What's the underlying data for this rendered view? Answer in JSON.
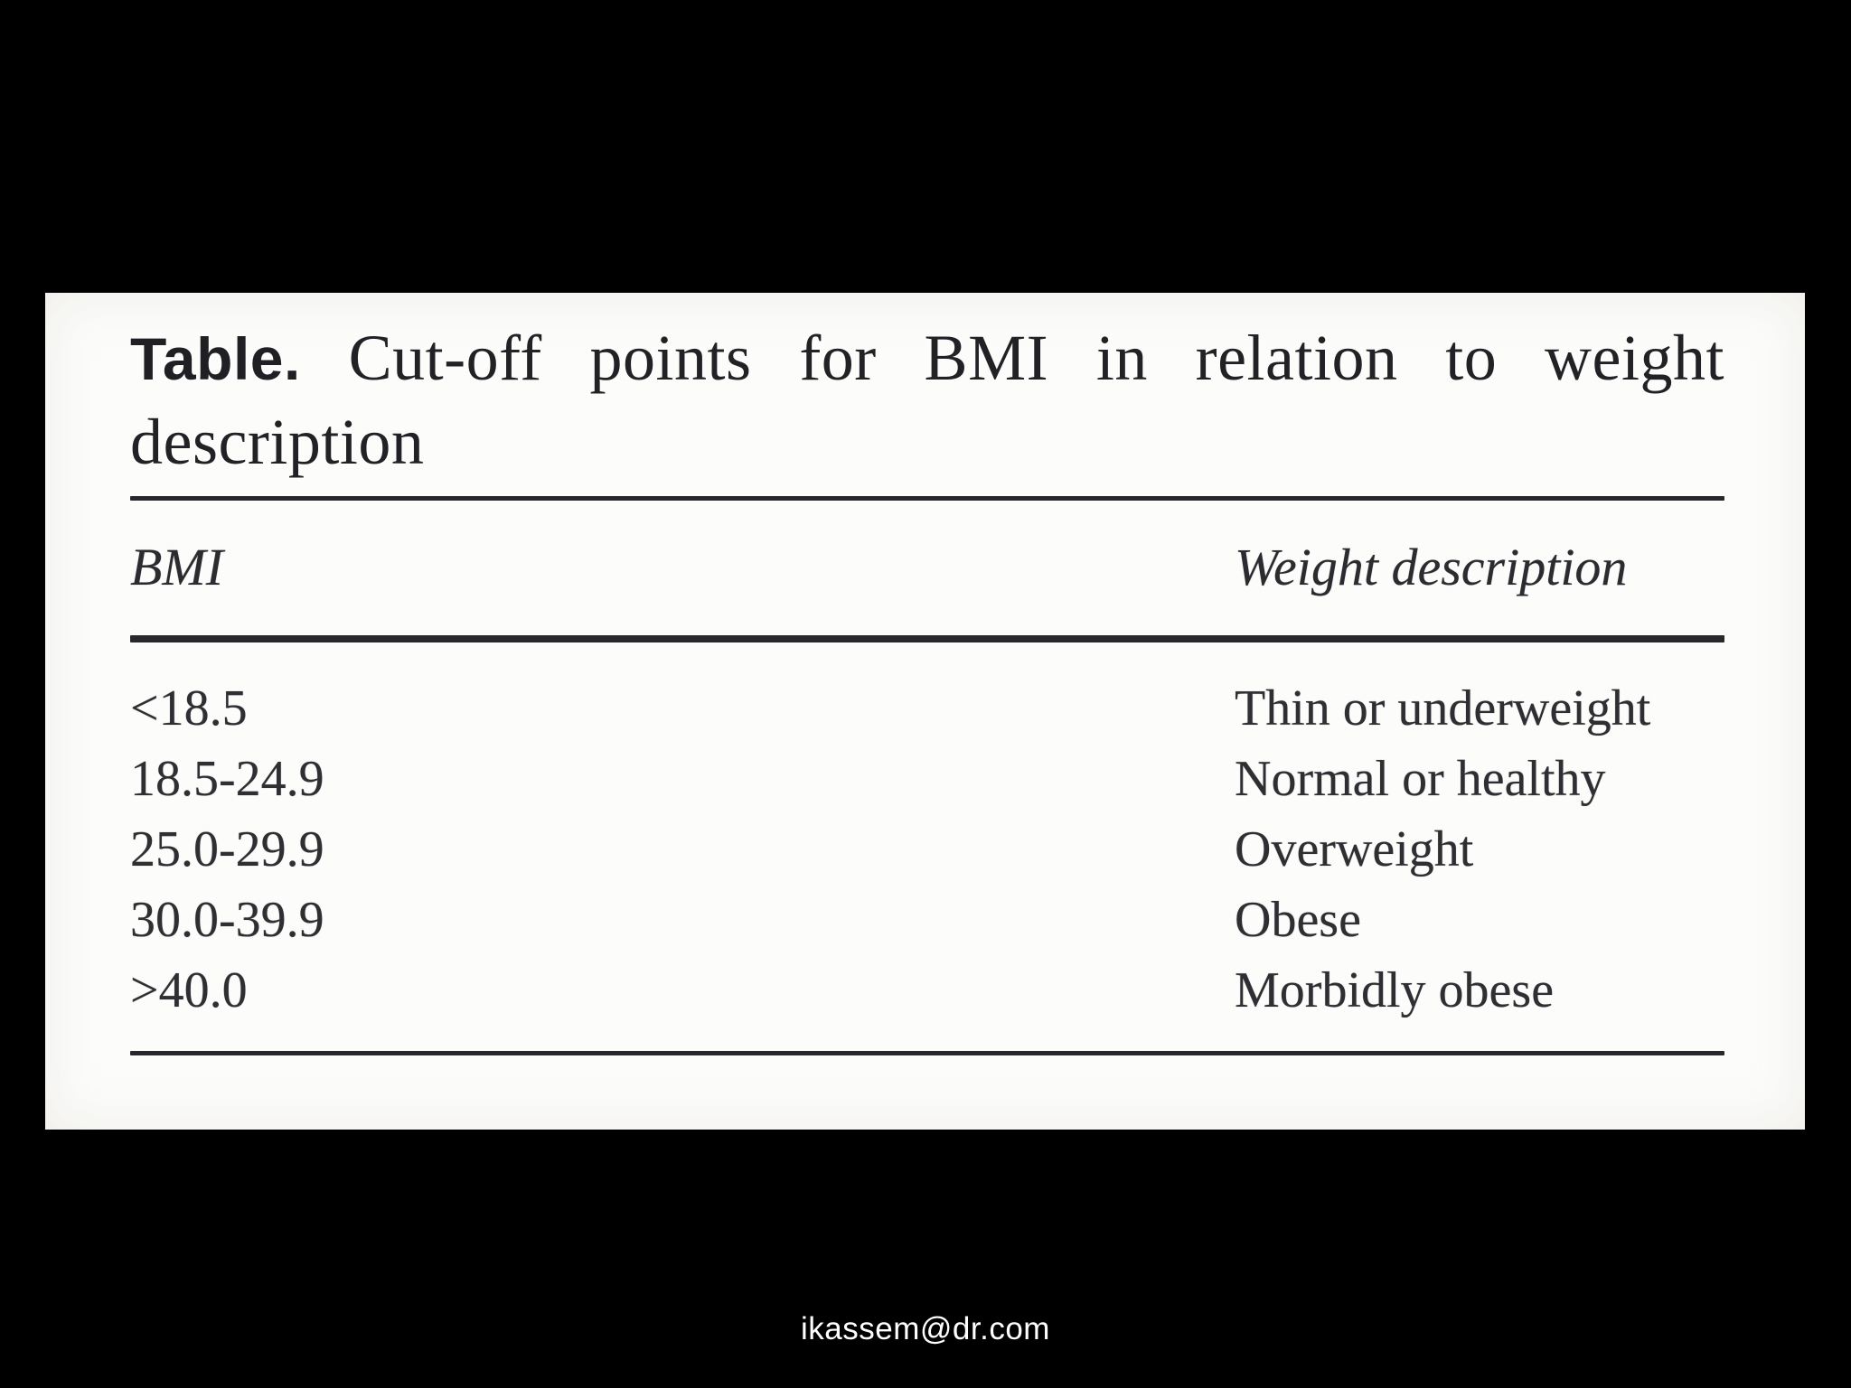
{
  "slide": {
    "background_color": "#000000",
    "panel_color": "#fcfcfb",
    "text_color": "#2e2e33"
  },
  "table": {
    "caption_label": "Table.",
    "caption_line1_rest": "Cut-off points for BMI in relation to weight",
    "caption_line2": "description",
    "columns": [
      "BMI",
      "Weight description"
    ],
    "rows": [
      {
        "bmi": "<18.5",
        "description": "Thin or underweight"
      },
      {
        "bmi": "18.5-24.9",
        "description": "Normal or healthy"
      },
      {
        "bmi": "25.0-29.9",
        "description": "Overweight"
      },
      {
        "bmi": "30.0-39.9",
        "description": "Obese"
      },
      {
        "bmi": ">40.0",
        "description": "Morbidly obese"
      }
    ]
  },
  "chart_data": {
    "type": "table",
    "title": "Table. Cut-off points for BMI in relation to weight description",
    "columns": [
      "BMI",
      "Weight description"
    ],
    "rows": [
      [
        "<18.5",
        "Thin or underweight"
      ],
      [
        "18.5-24.9",
        "Normal or healthy"
      ],
      [
        "25.0-29.9",
        "Overweight"
      ],
      [
        "30.0-39.9",
        "Obese"
      ],
      [
        ">40.0",
        "Morbidly obese"
      ]
    ]
  },
  "footer": {
    "email": "ikassem@dr.com"
  }
}
